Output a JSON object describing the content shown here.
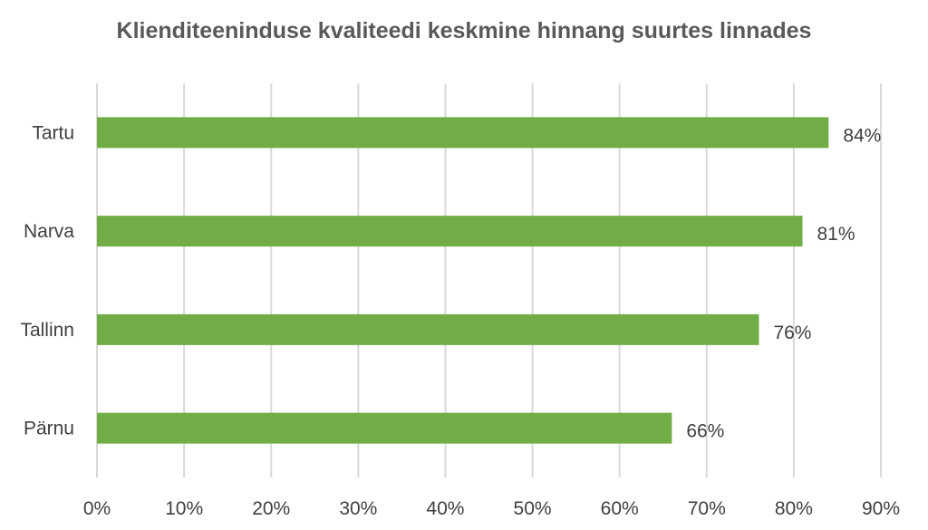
{
  "chart_data": {
    "type": "bar",
    "orientation": "horizontal",
    "title": "Klienditeeninduse kvaliteedi keskmine hinnang suurtes linnades",
    "categories": [
      "Tartu",
      "Narva",
      "Tallinn",
      "Pärnu"
    ],
    "values": [
      84,
      81,
      76,
      66
    ],
    "data_labels": [
      "84%",
      "81%",
      "76%",
      "66%"
    ],
    "xlim": [
      0,
      90
    ],
    "x_ticks": [
      0,
      10,
      20,
      30,
      40,
      50,
      60,
      70,
      80,
      90
    ],
    "x_tick_labels": [
      "0%",
      "10%",
      "20%",
      "30%",
      "40%",
      "50%",
      "60%",
      "70%",
      "80%",
      "90%"
    ],
    "grid": "vertical",
    "legend": "none",
    "bar_color": "#70ad47",
    "grid_color": "#d9d9d9",
    "text_color": "#404040"
  }
}
